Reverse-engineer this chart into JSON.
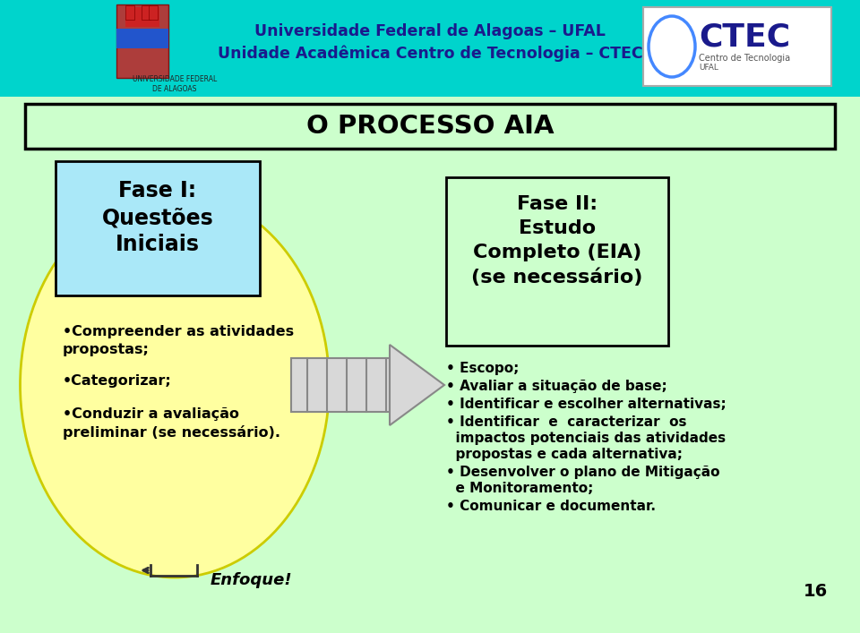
{
  "figsize": [
    9.6,
    7.07
  ],
  "dpi": 100,
  "bg_main_color": "#ccffcc",
  "bg_header_color": "#00d4cc",
  "header_text1": "Universidade Federal de Alagoas – UFAL",
  "header_text2": "Unidade Acadêmica Centro de Tecnologia – CTEC",
  "ufal_label": "UNIVERSIDADE FEDERAL\nDE ALAGOAS",
  "title_text": "O PROCESSO AIA",
  "title_box_bg": "#ccffcc",
  "fase1_box_color": "#aae8f8",
  "fase1_title_line1": "Fase I:",
  "fase1_title_line2": "Questões",
  "fase1_title_line3": "Iniciais",
  "oval_color": "#ffffa0",
  "oval_edge_color": "#cccc00",
  "bullet1_line1": "•Compreender as atividades",
  "bullet1_line2": "propostas;",
  "bullet2": "•Categorizar;",
  "bullet3_line1": "•Conduzir a avaliação",
  "bullet3_line2": "preliminar (se necessário).",
  "enfoque_text": "Enfoque!",
  "arrow_fill": "#d8d8d8",
  "arrow_edge": "#888888",
  "fase2_box_color": "#ccffcc",
  "fase2_title_line1": "Fase II:",
  "fase2_title_line2": "Estudo",
  "fase2_title_line3": "Completo (EIA)",
  "fase2_title_line4": "(se necessário)",
  "b1": "• Escopo;",
  "b2": "• Avaliar a situação de base;",
  "b3": "• Identificar e escolher alternativas;",
  "b4a": "• Identificar  e  caracterizar  os",
  "b4b": "  impactos potenciais das atividades",
  "b4c": "  propostas e cada alternativa;",
  "b5a": "• Desenvolver o plano de Mitigação",
  "b5b": "  e Monitoramento;",
  "b6": "• Comunicar e documentar.",
  "page_number": "16"
}
